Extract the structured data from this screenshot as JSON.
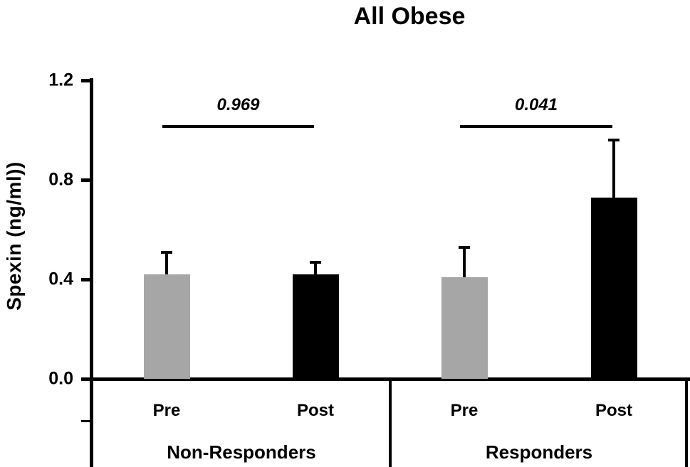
{
  "chart_data": {
    "type": "bar",
    "title": "All Obese",
    "ylabel": "Spexin (ng/ml))",
    "xlabel": "",
    "ylim": [
      0.0,
      1.2
    ],
    "yticks": [
      "0.0",
      "0.4",
      "0.8",
      "1.2"
    ],
    "grid": false,
    "legend": "none",
    "bar_colors": {
      "pre": "#a6a6a6",
      "post": "#000000"
    },
    "axis_color": "#000000",
    "groups": [
      {
        "label": "Non-Responders",
        "p_value": "0.969",
        "bars": [
          {
            "label": "Pre",
            "value": 0.42,
            "error_top": 0.51,
            "color": "#a6a6a6"
          },
          {
            "label": "Post",
            "value": 0.42,
            "error_top": 0.47,
            "color": "#000000"
          }
        ]
      },
      {
        "label": "Responders",
        "p_value": "0.041",
        "bars": [
          {
            "label": "Pre",
            "value": 0.41,
            "error_top": 0.53,
            "color": "#a6a6a6"
          },
          {
            "label": "Post",
            "value": 0.73,
            "error_top": 0.96,
            "color": "#000000"
          }
        ]
      }
    ]
  }
}
